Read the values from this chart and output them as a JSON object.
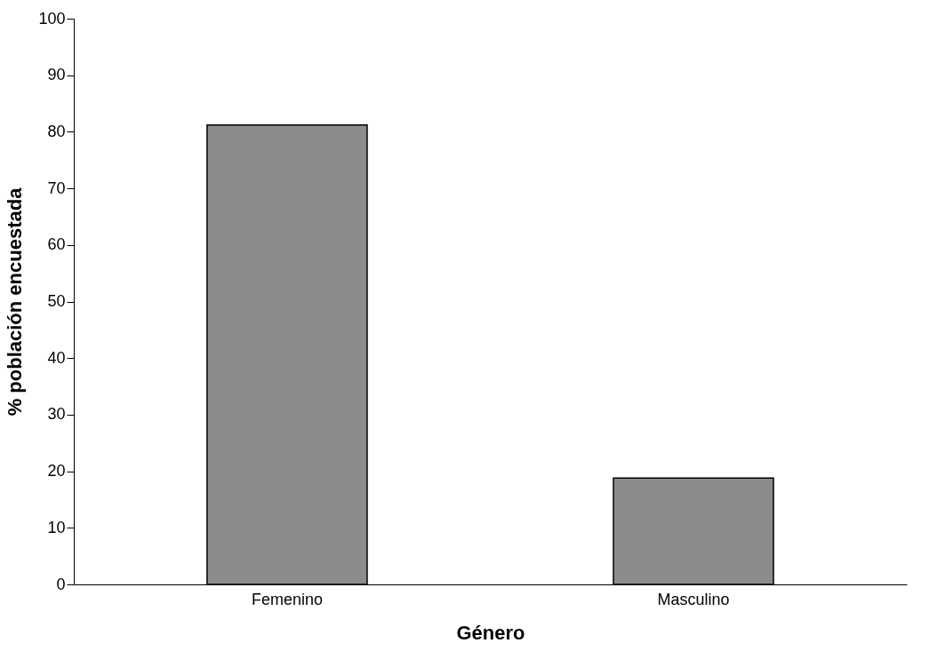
{
  "chart_data": {
    "type": "bar",
    "xlabel": "Género",
    "ylabel": "% población encuestada",
    "categories": [
      "Femenino",
      "Masculino"
    ],
    "values": [
      81.2,
      18.8
    ],
    "color": "#8c8c8c",
    "ylim": [
      0,
      100
    ],
    "yticks": [
      0,
      10,
      20,
      30,
      40,
      50,
      60,
      70,
      80,
      90,
      100
    ],
    "grid": false
  }
}
